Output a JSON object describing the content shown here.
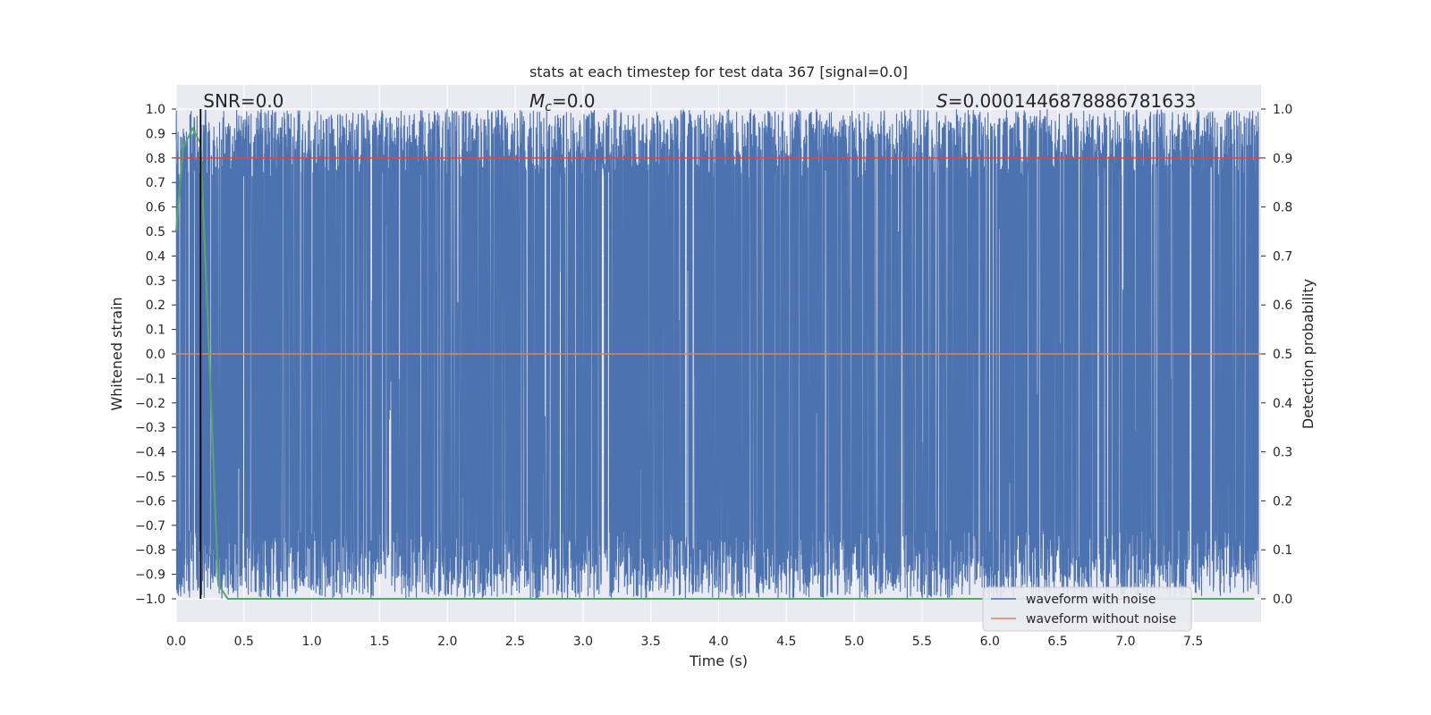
{
  "chart_data": {
    "type": "line",
    "title": "stats at each timestep for test data 367 [signal=0.0]",
    "xlabel": "Time (s)",
    "ylabel_left": "Whitened strain",
    "ylabel_right": "Detection probability",
    "xlim": [
      0.0,
      8.0
    ],
    "ylim_left": [
      -1.0,
      1.0
    ],
    "ylim_right": [
      0.0,
      1.0
    ],
    "x_ticks": [
      "0.0",
      "0.5",
      "1.0",
      "1.5",
      "2.0",
      "2.5",
      "3.0",
      "3.5",
      "4.0",
      "4.5",
      "5.0",
      "5.5",
      "6.0",
      "6.5",
      "7.0",
      "7.5"
    ],
    "y_ticks_left": [
      "1.0",
      "0.9",
      "0.8",
      "0.7",
      "0.6",
      "0.5",
      "0.4",
      "0.3",
      "0.2",
      "0.1",
      "0.0",
      "−0.1",
      "−0.2",
      "−0.3",
      "−0.4",
      "−0.5",
      "−0.6",
      "−0.7",
      "−0.8",
      "−0.9",
      "−1.0"
    ],
    "y_ticks_right": [
      "1.0",
      "0.9",
      "0.8",
      "0.7",
      "0.6",
      "0.5",
      "0.4",
      "0.3",
      "0.2",
      "0.1",
      "0.0"
    ],
    "annotations": {
      "snr": "SNR=0.0",
      "mc_symbol": "M",
      "mc_sub": "c",
      "mc_value": "=0.0",
      "s_symbol": "S",
      "s_value": "=0.0001446878886781633"
    },
    "legend": {
      "placement": "lower-right",
      "entries": [
        "waveform with noise",
        "waveform without noise"
      ]
    },
    "series": [
      {
        "name": "waveform with noise",
        "color": "#4c72b0",
        "style": "dense noise filling roughly -1.0 to 1.0 across 0-8 s"
      },
      {
        "name": "waveform without noise",
        "color": "#dd8452",
        "values_description_flat": 0.0
      },
      {
        "color": "#55a868",
        "axis": "right",
        "x": [
          0.0,
          0.05,
          0.12,
          0.18,
          0.25,
          0.31,
          0.38,
          8.0
        ],
        "y": [
          0.75,
          0.92,
          0.96,
          0.93,
          0.45,
          0.03,
          0.0,
          0.0
        ]
      }
    ],
    "threshold_line": {
      "color": "#c44e52",
      "axis": "right",
      "value": 0.9
    },
    "vertical_marker": {
      "color": "#000000",
      "x": 0.18
    }
  },
  "colors": {
    "axes_bg": "#eaeaf2",
    "grid": "#ffffff",
    "noise": "#4c72b0",
    "clean": "#dd8452",
    "prob": "#55a868",
    "threshold": "#c44e52"
  }
}
